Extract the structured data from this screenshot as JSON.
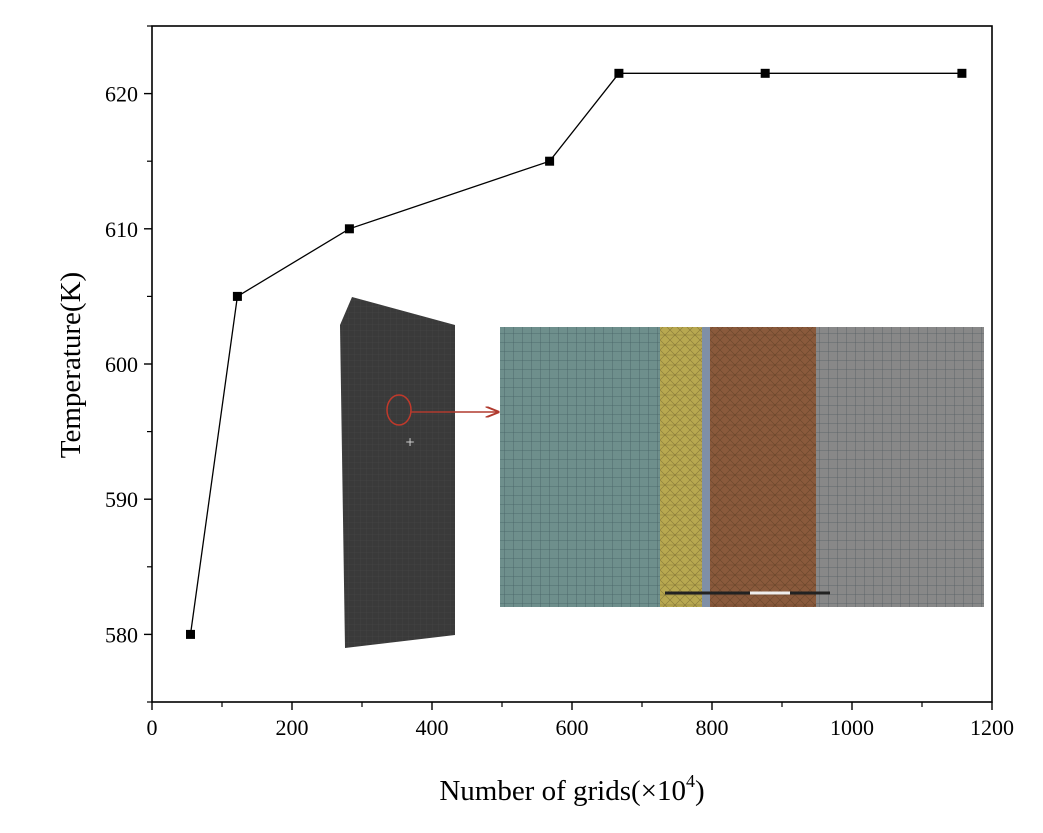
{
  "chart_data": {
    "type": "line",
    "title": "",
    "xlabel_main": "Number of grids(×10",
    "xlabel_sup": "4",
    "xlabel_end": ")",
    "ylabel": "Temperature(K)",
    "xlim": [
      0,
      1200
    ],
    "ylim": [
      575,
      625
    ],
    "x_ticks": [
      0,
      200,
      400,
      600,
      800,
      1000,
      1200
    ],
    "y_ticks": [
      580,
      590,
      600,
      610,
      620
    ],
    "grid": false,
    "legend": "none",
    "series": [
      {
        "x": [
          55,
          122,
          282,
          568,
          667,
          876,
          1157
        ],
        "y": [
          580,
          605,
          610,
          615,
          621.5,
          621.5,
          621.5
        ],
        "color": "#000000",
        "marker": "square"
      }
    ],
    "inset": {
      "colors": {
        "mesh_body": "#3a3a3a",
        "ellipse": "#c0392b",
        "arrow": "#b03a2e",
        "zone_teal": "#6e8f8c",
        "zone_yellow": "#b8a850",
        "zone_blue": "#7f8fa6",
        "zone_orange": "#8a5a3c",
        "zone_gray": "#888888"
      }
    }
  }
}
